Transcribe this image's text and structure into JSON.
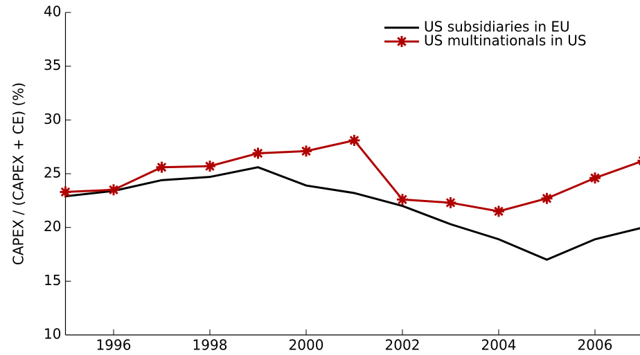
{
  "chart_data": {
    "type": "line",
    "y_label": "CAPEX / (CAPEX + CE) (%)",
    "x": [
      1995,
      1996,
      1997,
      1998,
      1999,
      2000,
      2001,
      2002,
      2003,
      2004,
      2005,
      2006,
      2007
    ],
    "series": [
      {
        "name": "US subsidiaries in EU",
        "color": "#000000",
        "marker": "none",
        "values": [
          22.9,
          23.4,
          24.4,
          24.7,
          25.6,
          23.9,
          23.2,
          22.0,
          20.3,
          18.9,
          17.0,
          18.9,
          20.0
        ]
      },
      {
        "name": "US multinationals in US",
        "color": "#b00000",
        "marker": "asterisk",
        "values": [
          23.3,
          23.5,
          25.6,
          25.7,
          26.9,
          27.1,
          28.1,
          22.6,
          22.3,
          21.5,
          22.7,
          24.6,
          26.2
        ]
      }
    ],
    "xlim": [
      1995,
      2007
    ],
    "xticks": [
      1996,
      1998,
      2000,
      2002,
      2004,
      2006
    ],
    "ylim": [
      10,
      40
    ],
    "yticks": [
      10,
      15,
      20,
      25,
      30,
      35,
      40
    ],
    "legend": "upper right"
  }
}
